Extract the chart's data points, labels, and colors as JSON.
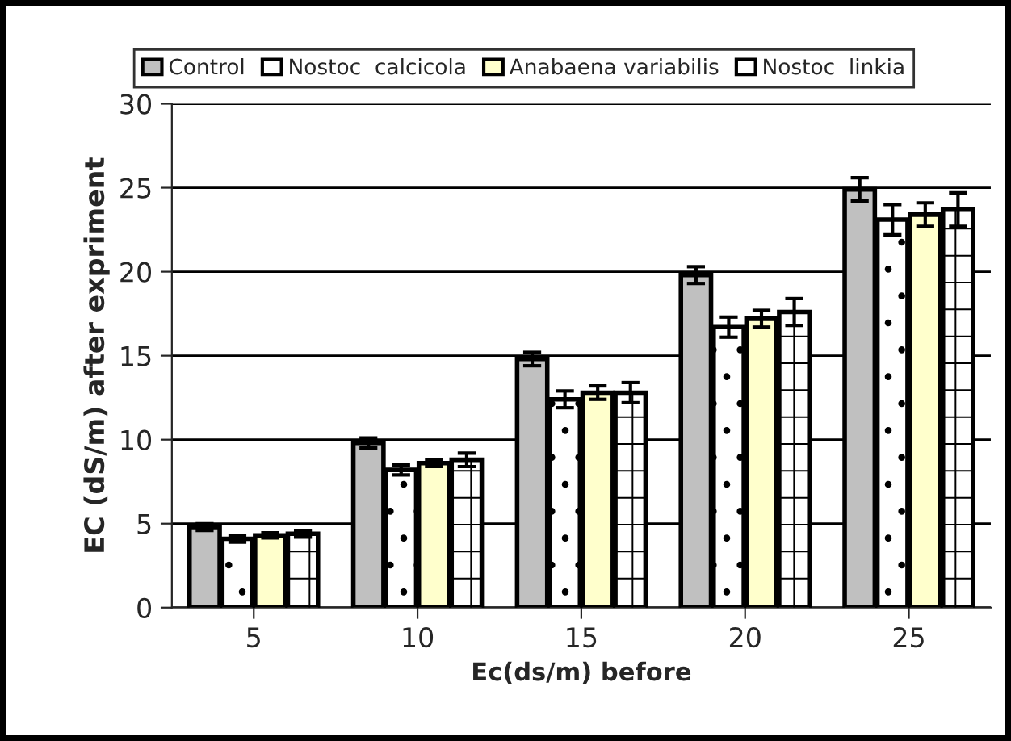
{
  "chart_data": {
    "type": "bar",
    "xlabel": "Ec(ds/m) before",
    "ylabel": "EC (dS/m) after expriment",
    "categories": [
      "5",
      "10",
      "15",
      "20",
      "25"
    ],
    "series": [
      {
        "name": "Control",
        "color": "#c0c0c0",
        "values": [
          4.8,
          9.8,
          14.8,
          19.8,
          24.9
        ],
        "errors": [
          0.2,
          0.3,
          0.4,
          0.5,
          0.7
        ]
      },
      {
        "name": "Nostoc  calcicola",
        "color": "#ffffff",
        "values": [
          4.1,
          8.2,
          12.4,
          16.7,
          23.1
        ],
        "errors": [
          0.2,
          0.3,
          0.5,
          0.6,
          0.9
        ]
      },
      {
        "name": "Anabaena variabilis",
        "color": "#ffffcc",
        "values": [
          4.3,
          8.6,
          12.8,
          17.2,
          23.4
        ],
        "errors": [
          0.15,
          0.2,
          0.4,
          0.5,
          0.7
        ]
      },
      {
        "name": "Nostoc  linkia",
        "color": "#ffffff",
        "values": [
          4.4,
          8.8,
          12.8,
          17.6,
          23.7
        ],
        "errors": [
          0.2,
          0.4,
          0.6,
          0.8,
          1.0
        ]
      }
    ],
    "ylim": [
      0,
      30
    ],
    "yticks": [
      0,
      5,
      10,
      15,
      20,
      25,
      30
    ],
    "grid": "y",
    "legend": "top"
  }
}
